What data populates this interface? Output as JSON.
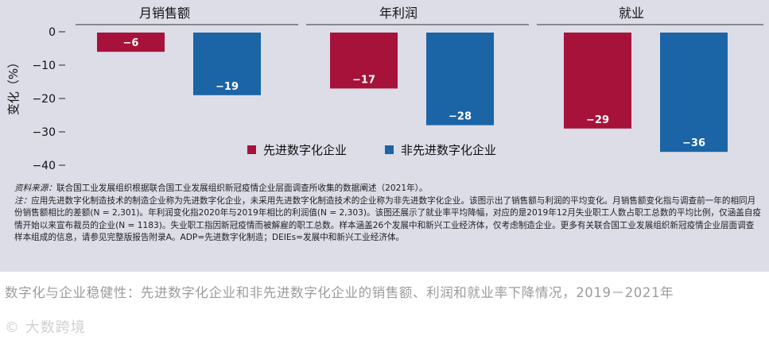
{
  "chart_data": {
    "type": "bar",
    "panels": [
      "月销售额",
      "年利润",
      "就业"
    ],
    "series": [
      {
        "name": "先进数字化企业",
        "values": [
          -6,
          -17,
          -29
        ],
        "color": "#a6123a"
      },
      {
        "name": "非先进数字化企业",
        "values": [
          -19,
          -28,
          -36
        ],
        "color": "#1b64a6"
      }
    ],
    "ylabel": "变化（%）",
    "yticks": [
      0,
      -10,
      -20,
      -30,
      -40
    ],
    "ylim": [
      -40,
      0
    ],
    "grid": false,
    "legend_placement": "bottom-center"
  },
  "notes": {
    "source_lead": "资料来源：",
    "source_text": "联合国工业发展组织根据联合国工业发展组织新冠疫情企业层面调查所收集的数据阐述（2021年）。",
    "note_lead": "注：",
    "note_text": "应用先进数字化制造技术的制造企业称为先进数字化企业，未采用先进数字化制造技术的企业称为非先进数字化企业。该图示出了销售额与利润的平均变化。月销售额变化指与调查前一年的相同月份销售额相比的差额(N = 2,301)。年利润变化指2020年与2019年相比的利润值(N = 2,303)。该图还展示了就业率平均降幅，对应的是2019年12月失业职工人数占职工总数的平均比例，仅涵盖自疫情开始以来宣布裁员的企业(N = 1183)。失业职工指因新冠疫情而被解雇的职工总数。样本涵盖26个发展中和新兴工业经济体，仅考虑制造企业。更多有关联合国工业发展组织新冠疫情企业层面调查样本组成的信息，请参见完整版报告附录A。ADP=先进数字化制造；DEIEs=发展中和新兴工业经济体。"
  },
  "caption": "数字化与企业稳健性：先进数字化企业和非先进数字化企业的销售额、利润和就业率下降情况，2019－2021年",
  "watermark": "© 大数跨境"
}
